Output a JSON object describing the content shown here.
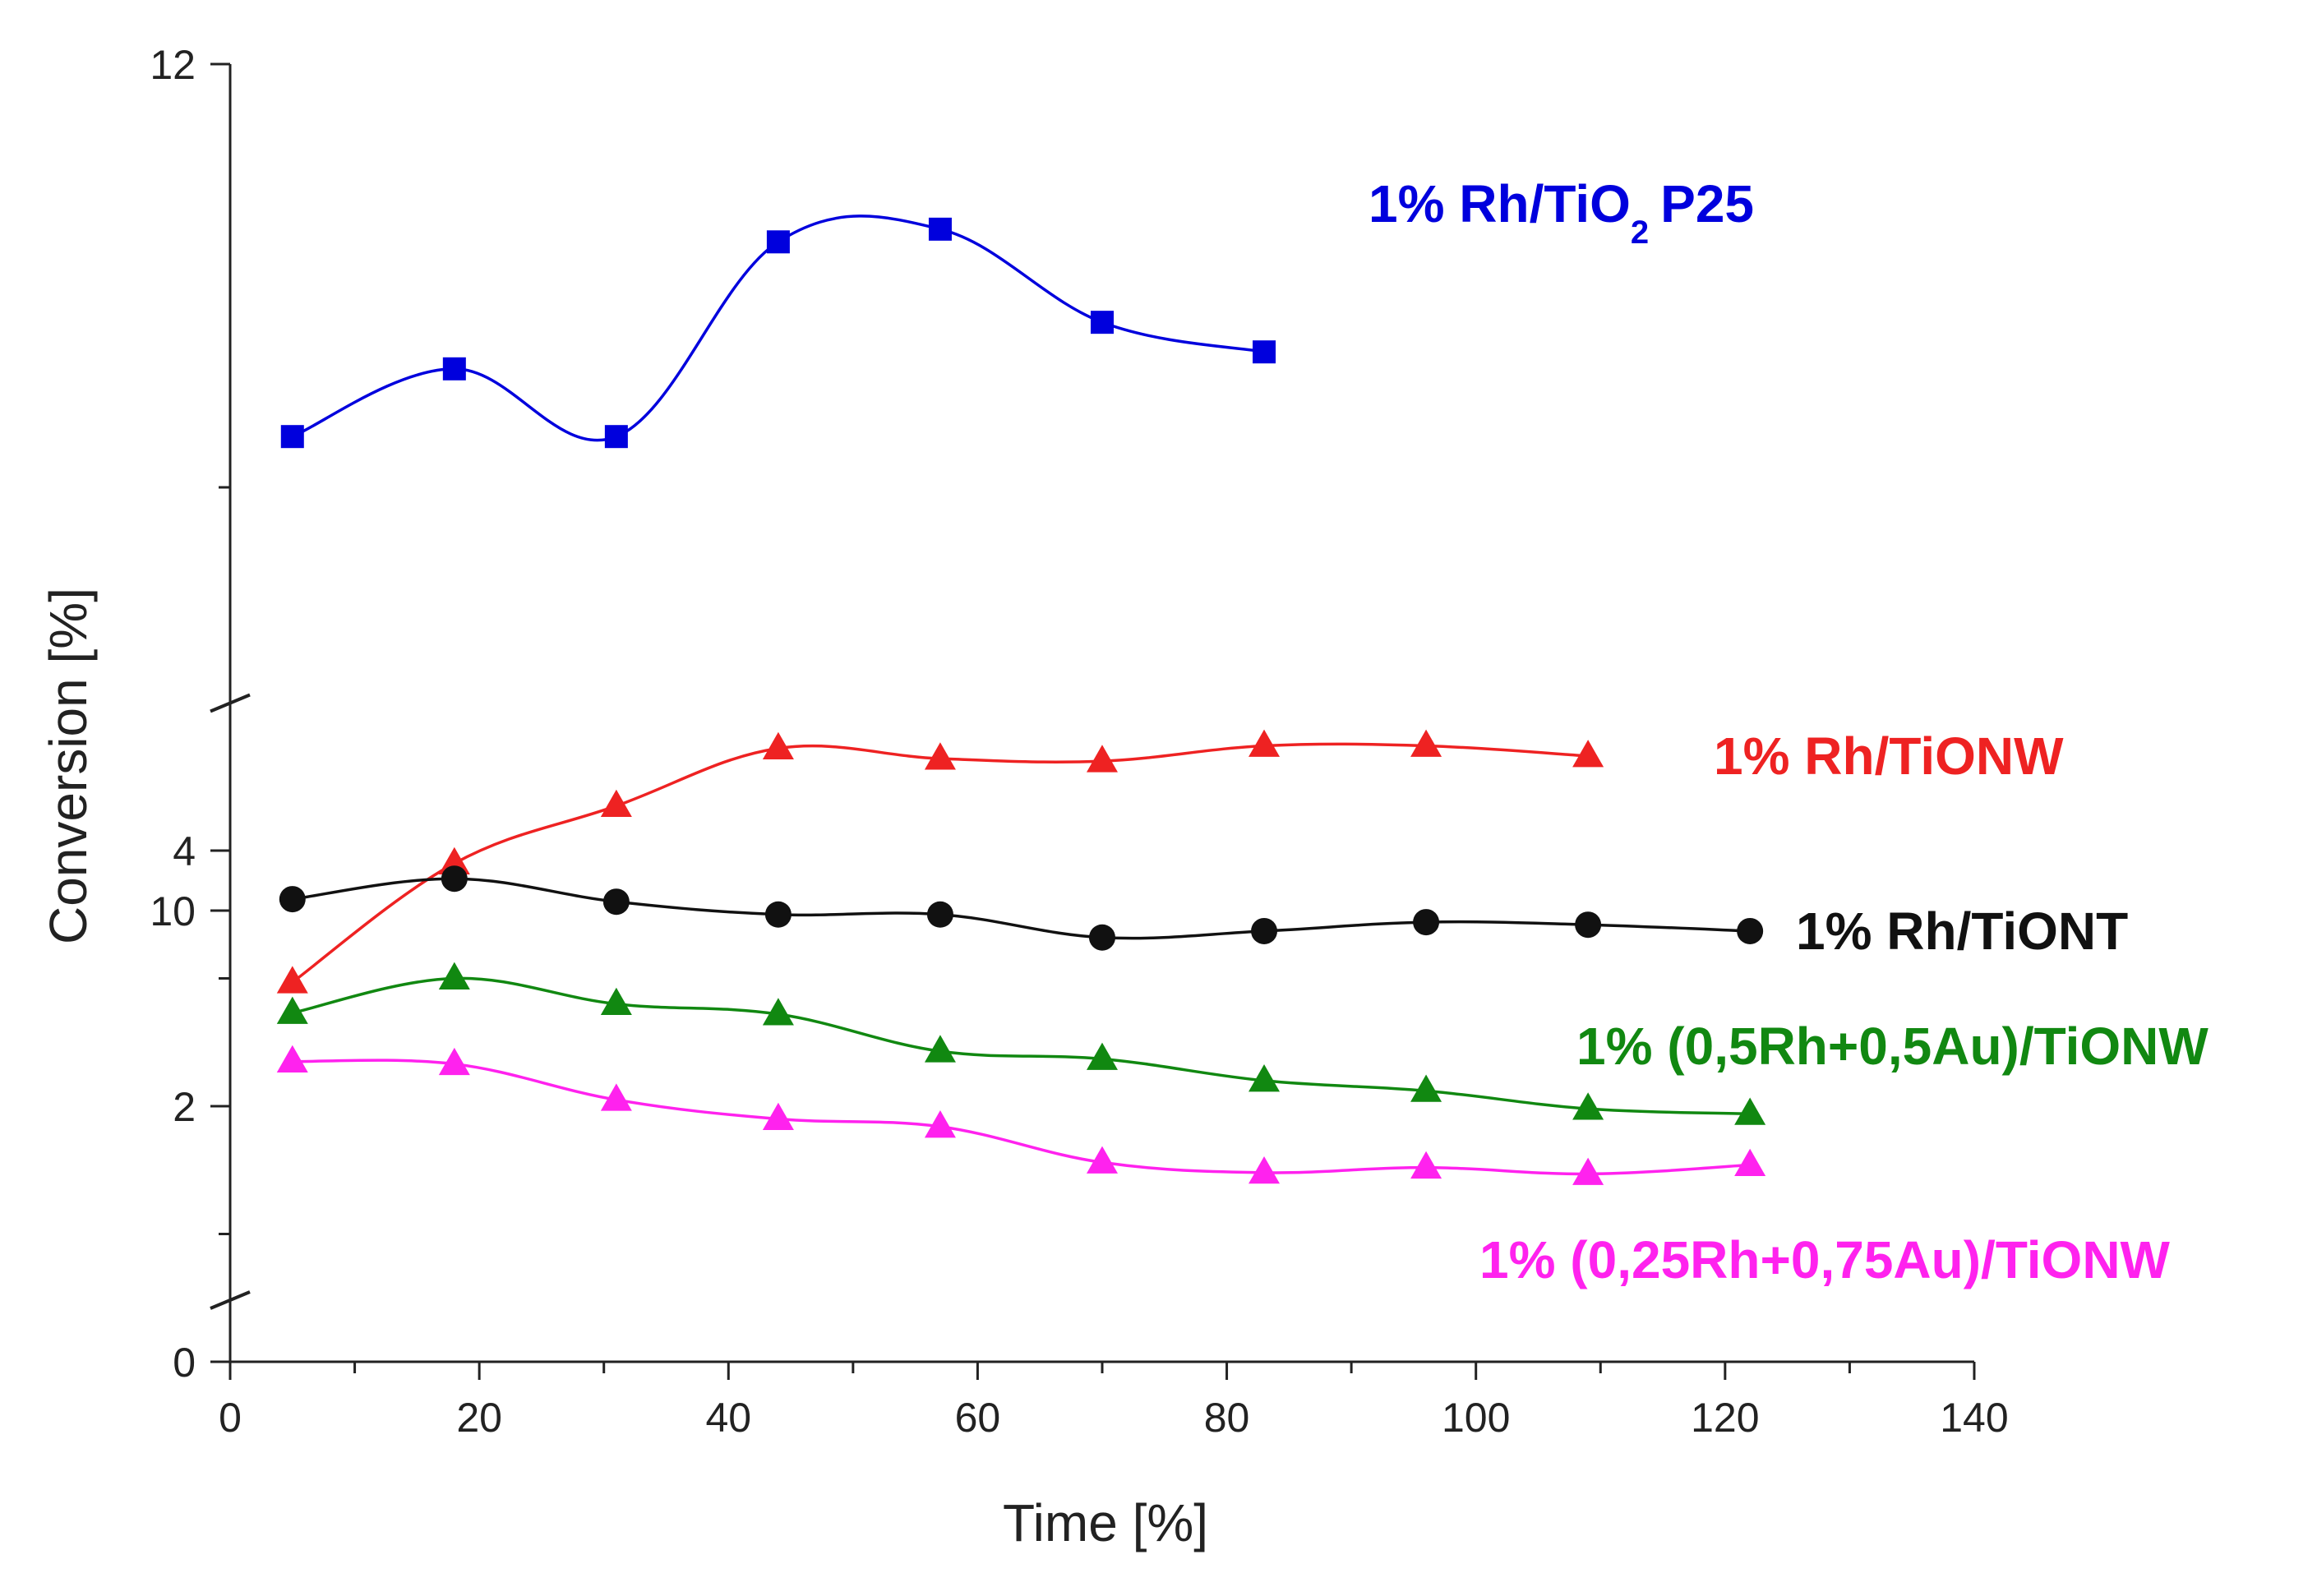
{
  "chart_data": {
    "type": "line",
    "title": "",
    "xlabel": "Time [%]",
    "ylabel": "Conversion [%]",
    "xlim": [
      0,
      140
    ],
    "ylim": [
      0,
      12
    ],
    "y_axis_break": [
      5,
      9.2
    ],
    "grid": false,
    "x_ticks": [
      "0",
      "20",
      "40",
      "60",
      "80",
      "100",
      "120",
      "140"
    ],
    "y_ticks": [
      "0",
      "2",
      "4",
      "10",
      "12"
    ],
    "series": [
      {
        "name": "1% Rh/TiO2 P25",
        "label_main": "1% Rh/TiO",
        "label_sub": "2",
        "label_tail": "P25",
        "color": "#0000dd",
        "marker": "square",
        "x": [
          5,
          18,
          31,
          44,
          57,
          70,
          83
        ],
        "values": [
          11.12,
          11.28,
          11.12,
          11.58,
          11.61,
          11.39,
          11.32
        ]
      },
      {
        "name": "1% Rh/TiONW",
        "label": "1% Rh/TiONW",
        "color": "#ee2222",
        "marker": "triangle",
        "x": [
          5,
          18,
          31,
          44,
          57,
          70,
          83,
          96,
          109
        ],
        "values": [
          2.97,
          3.9,
          4.35,
          4.8,
          4.72,
          4.7,
          4.82,
          4.82,
          4.74
        ]
      },
      {
        "name": "1% Rh/TiONT",
        "label": "1% Rh/TiONT",
        "color": "#111111",
        "marker": "circle",
        "x": [
          5,
          18,
          31,
          44,
          57,
          70,
          83,
          96,
          109,
          122
        ],
        "values": [
          3.62,
          3.78,
          3.6,
          3.5,
          3.5,
          3.32,
          3.37,
          3.44,
          3.42,
          3.37
        ]
      },
      {
        "name": "1% (0,5Rh+0,5Au)/TiONW",
        "label": "1% (0,5Rh+0,5Au)/TiONW",
        "color": "#118811",
        "marker": "triangle",
        "x": [
          5,
          18,
          31,
          44,
          57,
          70,
          83,
          96,
          109,
          122
        ],
        "values": [
          2.73,
          3.0,
          2.8,
          2.72,
          2.43,
          2.37,
          2.2,
          2.12,
          1.98,
          1.94
        ]
      },
      {
        "name": "1% (0,25Rh+0,75Au)/TiONW",
        "label": "1% (0,25Rh+0,75Au)/TiONW",
        "color": "#ff22ee",
        "marker": "triangle",
        "x": [
          5,
          18,
          31,
          44,
          57,
          70,
          83,
          96,
          109,
          122
        ],
        "values": [
          2.35,
          2.33,
          2.05,
          1.9,
          1.84,
          1.56,
          1.48,
          1.52,
          1.47,
          1.54
        ]
      }
    ]
  }
}
